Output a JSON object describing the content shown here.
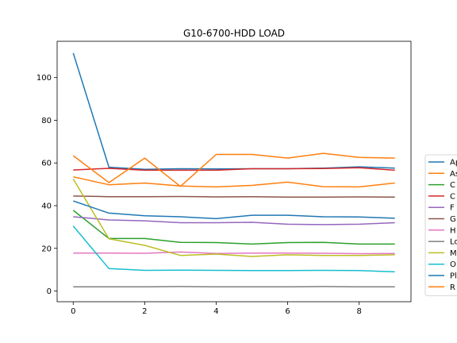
{
  "chart_data": {
    "type": "line",
    "title": "G10-6700-HDD LOAD",
    "xlabel": "",
    "ylabel": "",
    "x": [
      0,
      1,
      2,
      3,
      4,
      5,
      6,
      7,
      8,
      9
    ],
    "xlim": [
      -0.45,
      9.45
    ],
    "ylim": [
      -5,
      117
    ],
    "xticks": [
      0,
      2,
      4,
      6,
      8
    ],
    "yticks": [
      0,
      20,
      40,
      60,
      80,
      100
    ],
    "grid": false,
    "legend_position": "right (clipped)",
    "series": [
      {
        "name": "Ap",
        "color": "#1f77b4",
        "values": [
          111.5,
          58.0,
          57.0,
          57.3,
          57.2,
          57.3,
          57.3,
          57.6,
          58.2,
          57.6
        ]
      },
      {
        "name": "As",
        "color": "#ff7f0e",
        "values": [
          53.5,
          49.8,
          50.6,
          49.2,
          48.8,
          49.5,
          51.0,
          48.9,
          48.8,
          50.6
        ]
      },
      {
        "name": "C",
        "color": "#2ca02c",
        "values": [
          37.8,
          24.6,
          24.6,
          22.8,
          22.7,
          22.0,
          22.7,
          22.8,
          22.0,
          22.0
        ]
      },
      {
        "name": "C",
        "color": "#d62728",
        "values": [
          56.7,
          57.5,
          56.6,
          56.6,
          56.6,
          57.3,
          57.3,
          57.4,
          57.8,
          56.6
        ]
      },
      {
        "name": "F",
        "color": "#9467bd",
        "values": [
          34.8,
          33.3,
          32.9,
          32.0,
          32.0,
          32.2,
          31.3,
          31.1,
          31.3,
          32.0
        ]
      },
      {
        "name": "G",
        "color": "#8c564b",
        "values": [
          44.5,
          44.2,
          44.2,
          44.3,
          44.1,
          44.2,
          44.0,
          44.0,
          44.1,
          44.0
        ]
      },
      {
        "name": "H",
        "color": "#e377c2",
        "values": [
          17.8,
          17.8,
          17.7,
          18.3,
          17.6,
          17.8,
          17.8,
          17.7,
          17.5,
          17.6
        ]
      },
      {
        "name": "Lo",
        "color": "#7f7f7f",
        "values": [
          2.0,
          2.0,
          2.0,
          2.1,
          2.0,
          2.0,
          2.0,
          2.1,
          2.0,
          2.0
        ]
      },
      {
        "name": "M",
        "color": "#bcbd22",
        "values": [
          52.5,
          24.5,
          21.4,
          16.7,
          17.3,
          16.2,
          17.0,
          16.7,
          16.7,
          17.0
        ]
      },
      {
        "name": "O",
        "color": "#17becf",
        "values": [
          30.5,
          10.5,
          9.7,
          9.8,
          9.7,
          9.6,
          9.6,
          9.7,
          9.6,
          9.0
        ]
      },
      {
        "name": "Pl",
        "color": "#1f77b4",
        "values": [
          42.2,
          36.5,
          35.3,
          34.8,
          33.9,
          35.5,
          35.5,
          34.8,
          34.7,
          34.1
        ]
      },
      {
        "name": "R",
        "color": "#ff7f0e",
        "values": [
          63.4,
          50.8,
          62.3,
          49.0,
          64.0,
          64.0,
          62.3,
          64.5,
          62.6,
          62.3
        ]
      }
    ]
  }
}
